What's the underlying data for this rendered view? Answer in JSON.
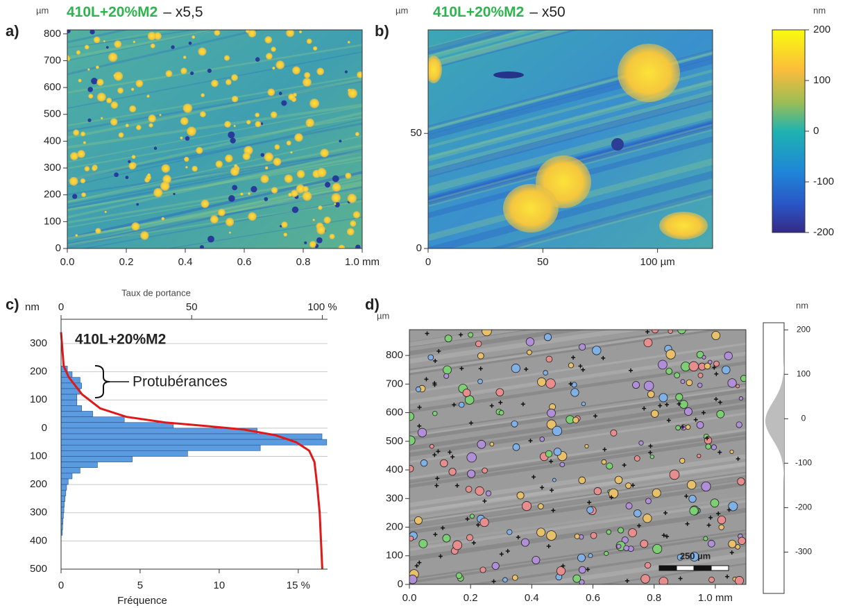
{
  "panels": {
    "a": {
      "label": "a)",
      "unit": "µm",
      "title": "410L+20%M2",
      "subtitle": "– x5,5",
      "xlim": [
        0,
        1.0
      ],
      "ylim": [
        0,
        815
      ],
      "xticks": [
        {
          "value": 0,
          "label": "0.0"
        },
        {
          "value": 0.2,
          "label": "0.2"
        },
        {
          "value": 0.4,
          "label": "0.4"
        },
        {
          "value": 0.6,
          "label": "0.6"
        },
        {
          "value": 0.8,
          "label": "0.8"
        },
        {
          "value": 1.0,
          "label": "1.0 mm"
        }
      ],
      "yticks": [
        0,
        100,
        200,
        300,
        400,
        500,
        600,
        700,
        800
      ]
    },
    "b": {
      "label": "b)",
      "unit": "µm",
      "title": "410L+20%M2",
      "subtitle": "– x50",
      "xlim": [
        0,
        124
      ],
      "ylim": [
        0,
        95
      ],
      "xticks": [
        0,
        50,
        {
          "value": 100,
          "label": "100 µm"
        }
      ],
      "yticks": [
        0,
        50
      ]
    },
    "colorbar": {
      "unit": "nm",
      "lim": [
        -200,
        200
      ],
      "ticks": [
        200,
        100,
        0,
        -100,
        -200
      ]
    },
    "c": {
      "label": "c)",
      "unit": "nm",
      "title": "410L+20%M2",
      "top_axis_label": "Taux de portance",
      "x_label": "Fréquence",
      "annotation": "Protubérances",
      "xlim": [
        0,
        16.85
      ],
      "x2lim": [
        0,
        102
      ],
      "ylim": [
        -500,
        386
      ],
      "xticks": [
        0,
        5,
        10,
        {
          "value": 15,
          "label": "15 %"
        }
      ],
      "x2ticks": [
        0,
        50,
        {
          "value": 100,
          "label": "100 %"
        }
      ],
      "yticks": [
        300,
        200,
        100,
        0,
        {
          "value": -100,
          "label": "100"
        },
        {
          "value": -200,
          "label": "200"
        },
        {
          "value": -300,
          "label": "300"
        },
        {
          "value": -400,
          "label": "400"
        },
        {
          "value": -500,
          "label": "500"
        }
      ],
      "bar_color": "#5b9be0",
      "grid": true,
      "bins": [
        220,
        200,
        180,
        160,
        140,
        120,
        100,
        80,
        60,
        40,
        20,
        0,
        -20,
        -40,
        -60,
        -80,
        -100,
        -120,
        -140,
        -160,
        -180,
        -200,
        -220,
        -240,
        -260,
        -280,
        -300,
        -320,
        -340,
        -360,
        -380
      ],
      "values": [
        0.4,
        0.7,
        1.2,
        1.3,
        1.2,
        1.0,
        1.0,
        1.3,
        2.0,
        4.0,
        7.1,
        12.4,
        16.5,
        16.8,
        12.6,
        8.0,
        4.5,
        2.3,
        1.2,
        0.7,
        0.45,
        0.35,
        0.3,
        0.25,
        0.2,
        0.18,
        0.15,
        0.12,
        0.1,
        0.08
      ],
      "curve": {
        "color": "#e01818",
        "x": [
          0,
          1,
          3,
          8,
          15,
          25,
          40,
          55,
          70,
          82,
          90,
          95,
          97,
          98,
          99,
          100
        ],
        "y": [
          340,
          220,
          180,
          120,
          70,
          40,
          20,
          8,
          -5,
          -25,
          -50,
          -80,
          -120,
          -200,
          -300,
          -500
        ]
      }
    },
    "d": {
      "label": "d)",
      "unit": "µm",
      "scale_bar": "250 µm",
      "side_unit": "nm",
      "xlim": [
        0,
        1.1
      ],
      "ylim": [
        0,
        890
      ],
      "xticks": [
        {
          "value": 0,
          "label": "0.0"
        },
        {
          "value": 0.2,
          "label": "0.2"
        },
        {
          "value": 0.4,
          "label": "0.4"
        },
        {
          "value": 0.6,
          "label": "0.6"
        },
        {
          "value": 0.8,
          "label": "0.8"
        },
        {
          "value": 1.0,
          "label": "1.0 mm"
        }
      ],
      "yticks": [
        0,
        100,
        200,
        300,
        400,
        500,
        600,
        700,
        800
      ],
      "side_lim": [
        -393,
        216
      ],
      "side_ticks": [
        200,
        100,
        0,
        -100,
        -200,
        -300
      ]
    }
  }
}
